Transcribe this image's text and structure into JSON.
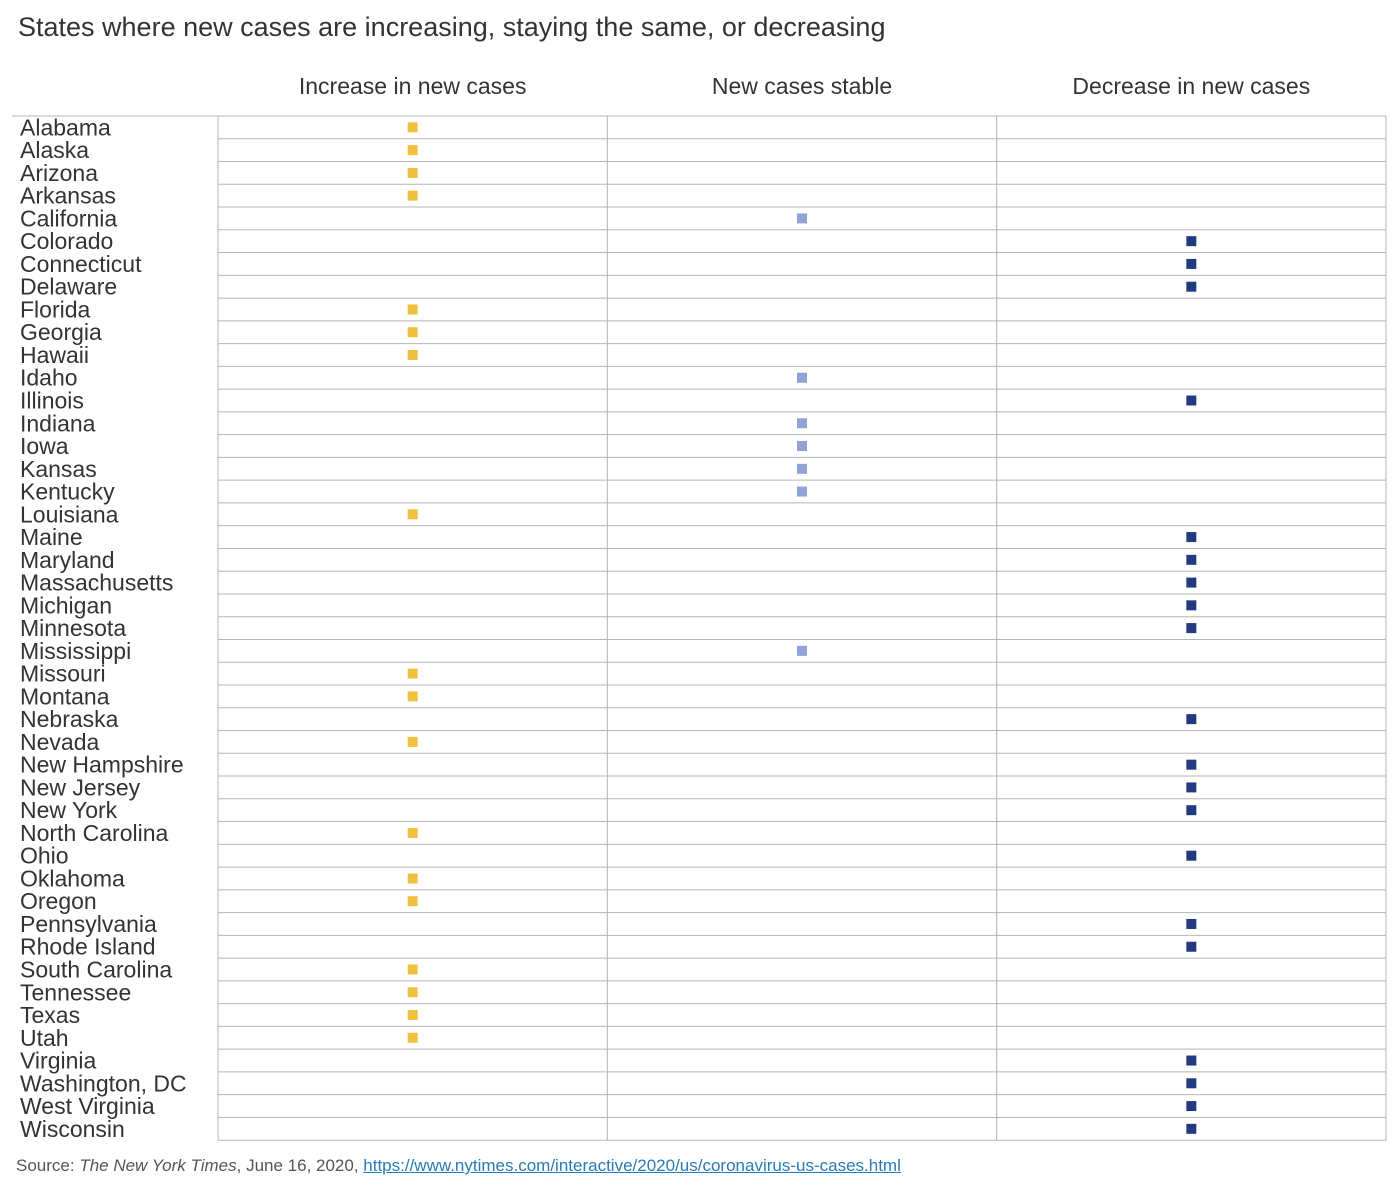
{
  "chart_data": {
    "type": "table",
    "title": "States where new cases are increasing, staying the same, or decreasing",
    "columns": [
      "Increase in new cases",
      "New cases stable",
      "Decrease in new cases"
    ],
    "column_keys": [
      "increase",
      "stable",
      "decrease"
    ],
    "colors": {
      "increase": "#f0c040",
      "stable": "#8fa3d8",
      "decrease": "#243a80",
      "grid": "#b5b5b5"
    },
    "rows": [
      {
        "state": "Alabama",
        "trend": "increase"
      },
      {
        "state": "Alaska",
        "trend": "increase"
      },
      {
        "state": "Arizona",
        "trend": "increase"
      },
      {
        "state": "Arkansas",
        "trend": "increase"
      },
      {
        "state": "California",
        "trend": "stable"
      },
      {
        "state": "Colorado",
        "trend": "decrease"
      },
      {
        "state": "Connecticut",
        "trend": "decrease"
      },
      {
        "state": "Delaware",
        "trend": "decrease"
      },
      {
        "state": "Florida",
        "trend": "increase"
      },
      {
        "state": "Georgia",
        "trend": "increase"
      },
      {
        "state": "Hawaii",
        "trend": "increase"
      },
      {
        "state": "Idaho",
        "trend": "stable"
      },
      {
        "state": "Illinois",
        "trend": "decrease"
      },
      {
        "state": "Indiana",
        "trend": "stable"
      },
      {
        "state": "Iowa",
        "trend": "stable"
      },
      {
        "state": "Kansas",
        "trend": "stable"
      },
      {
        "state": "Kentucky",
        "trend": "stable"
      },
      {
        "state": "Louisiana",
        "trend": "increase"
      },
      {
        "state": "Maine",
        "trend": "decrease"
      },
      {
        "state": "Maryland",
        "trend": "decrease"
      },
      {
        "state": "Massachusetts",
        "trend": "decrease"
      },
      {
        "state": "Michigan",
        "trend": "decrease"
      },
      {
        "state": "Minnesota",
        "trend": "decrease"
      },
      {
        "state": "Mississippi",
        "trend": "stable"
      },
      {
        "state": "Missouri",
        "trend": "increase"
      },
      {
        "state": "Montana",
        "trend": "increase"
      },
      {
        "state": "Nebraska",
        "trend": "decrease"
      },
      {
        "state": "Nevada",
        "trend": "increase"
      },
      {
        "state": "New Hampshire",
        "trend": "decrease"
      },
      {
        "state": "New Jersey",
        "trend": "decrease"
      },
      {
        "state": "New York",
        "trend": "decrease"
      },
      {
        "state": "North Carolina",
        "trend": "increase"
      },
      {
        "state": "Ohio",
        "trend": "decrease"
      },
      {
        "state": "Oklahoma",
        "trend": "increase"
      },
      {
        "state": "Oregon",
        "trend": "increase"
      },
      {
        "state": "Pennsylvania",
        "trend": "decrease"
      },
      {
        "state": "Rhode Island",
        "trend": "decrease"
      },
      {
        "state": "South Carolina",
        "trend": "increase"
      },
      {
        "state": "Tennessee",
        "trend": "increase"
      },
      {
        "state": "Texas",
        "trend": "increase"
      },
      {
        "state": "Utah",
        "trend": "increase"
      },
      {
        "state": "Virginia",
        "trend": "decrease"
      },
      {
        "state": "Washington, DC",
        "trend": "decrease"
      },
      {
        "state": "West Virginia",
        "trend": "decrease"
      },
      {
        "state": "Wisconsin",
        "trend": "decrease"
      }
    ]
  },
  "source": {
    "prefix": "Source: ",
    "publication": "The New York Times",
    "date": ", June 16, 2020, ",
    "url": "https://www.nytimes.com/interactive/2020/us/coronavirus-us-cases.html"
  }
}
